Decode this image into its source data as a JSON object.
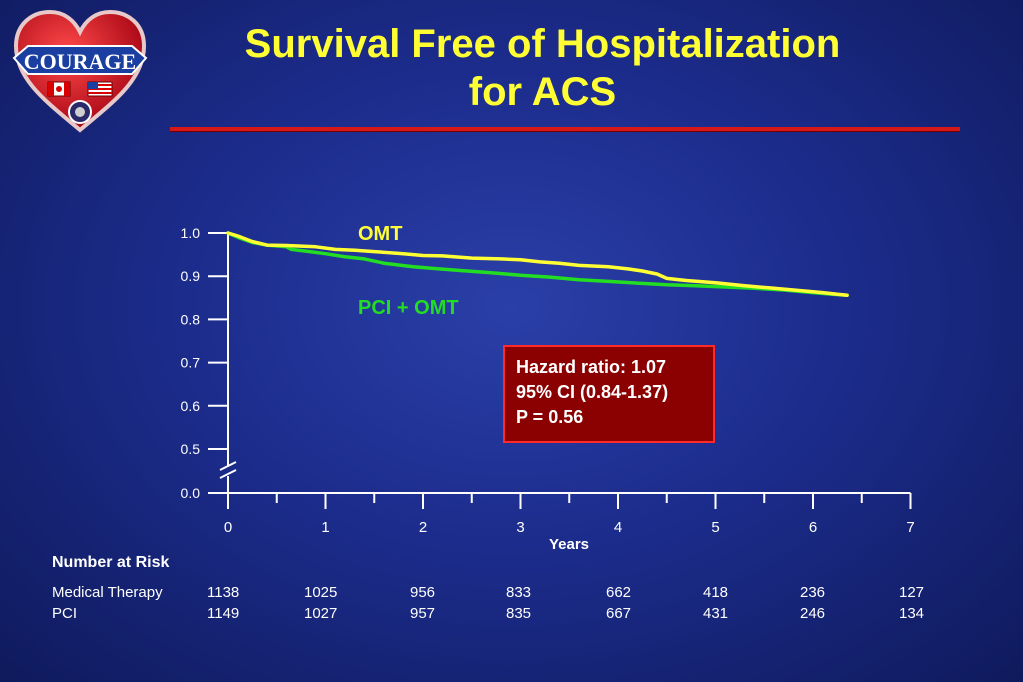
{
  "logo": {
    "text": "COURAGE",
    "colors": {
      "heart": "#d0101a",
      "banner": "#1a3fa0"
    }
  },
  "title": {
    "line1": "Survival Free of Hospitalization",
    "line2": "for ACS"
  },
  "colors": {
    "background": "#1c2c8c",
    "title": "#ffff33",
    "rule": "#d81818",
    "omt": "#ffff33",
    "pci": "#22dd22",
    "box_fill": "#8b0000",
    "box_border": "#ff2a2a"
  },
  "chart_data": {
    "type": "line",
    "xlabel": "Years",
    "ylabel": "",
    "x_ticks": [
      "0",
      "1",
      "2",
      "3",
      "4",
      "5",
      "6",
      "7"
    ],
    "y_ticks": [
      "0.0",
      "0.5",
      "0.6",
      "0.7",
      "0.8",
      "0.9",
      "1.0"
    ],
    "xlim": [
      0,
      7
    ],
    "ylim": [
      0.45,
      1.0
    ],
    "axis_break": true,
    "grid": false,
    "series": [
      {
        "name": "OMT",
        "color": "#ffff33",
        "x": [
          0,
          0.1,
          0.25,
          0.4,
          0.6,
          0.9,
          1.1,
          1.3,
          1.5,
          1.8,
          2.0,
          2.2,
          2.5,
          2.8,
          3.0,
          3.2,
          3.4,
          3.6,
          3.9,
          4.1,
          4.25,
          4.4,
          4.5,
          4.7,
          5.0,
          5.3,
          5.6,
          5.9,
          6.1,
          6.25,
          6.35
        ],
        "y": [
          1.0,
          0.993,
          0.98,
          0.972,
          0.971,
          0.968,
          0.962,
          0.96,
          0.957,
          0.952,
          0.948,
          0.947,
          0.942,
          0.94,
          0.938,
          0.933,
          0.93,
          0.925,
          0.922,
          0.917,
          0.912,
          0.905,
          0.895,
          0.89,
          0.885,
          0.878,
          0.872,
          0.866,
          0.862,
          0.858,
          0.856
        ]
      },
      {
        "name": "PCI + OMT",
        "color": "#22dd22",
        "x": [
          0,
          0.1,
          0.25,
          0.4,
          0.6,
          0.65,
          0.8,
          1.0,
          1.2,
          1.4,
          1.6,
          1.9,
          2.1,
          2.4,
          2.7,
          3.0,
          3.3,
          3.6,
          3.9,
          4.2,
          4.5,
          4.8,
          5.1,
          5.4,
          5.7,
          6.0,
          6.2,
          6.35
        ],
        "y": [
          1.0,
          0.99,
          0.978,
          0.972,
          0.968,
          0.962,
          0.958,
          0.952,
          0.945,
          0.94,
          0.93,
          0.922,
          0.918,
          0.913,
          0.908,
          0.902,
          0.898,
          0.892,
          0.888,
          0.884,
          0.88,
          0.878,
          0.875,
          0.872,
          0.868,
          0.862,
          0.858,
          0.856
        ]
      }
    ]
  },
  "annotation": {
    "line1": "Hazard ratio: 1.07",
    "line2": "95% CI (0.84-1.37)",
    "line3": "P = 0.56"
  },
  "risk_table": {
    "title": "Number at Risk",
    "rows": [
      {
        "label": "Medical Therapy",
        "values": [
          "1138",
          "1025",
          "956",
          "833",
          "662",
          "418",
          "236",
          "127"
        ]
      },
      {
        "label": "PCI",
        "values": [
          "1149",
          "1027",
          "957",
          "835",
          "667",
          "431",
          "246",
          "134"
        ]
      }
    ]
  }
}
